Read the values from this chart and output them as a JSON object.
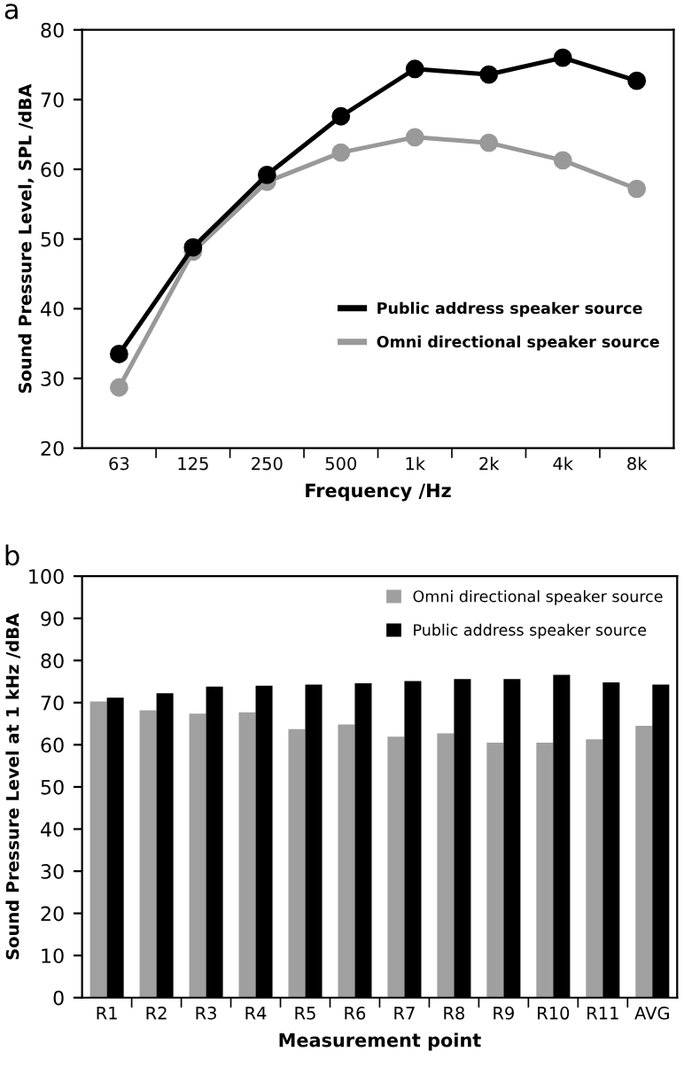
{
  "chart_data": [
    {
      "type": "line",
      "title": "a",
      "xlabel": "Frequency /Hz",
      "ylabel": "Sound Pressure Level, SPL /dBA",
      "categories": [
        "63",
        "125",
        "250",
        "500",
        "1k",
        "2k",
        "4k",
        "8k"
      ],
      "series": [
        {
          "name": "Public address speaker source",
          "color": "#000000",
          "values": [
            33.5,
            48.8,
            59.2,
            67.6,
            74.4,
            73.6,
            76.0,
            72.7
          ]
        },
        {
          "name": "Omni directional speaker source",
          "color": "#999999",
          "values": [
            28.7,
            48.2,
            58.2,
            62.4,
            64.6,
            63.8,
            61.3,
            57.2
          ]
        }
      ],
      "ylim": [
        20,
        80
      ],
      "yticks": [
        20,
        30,
        40,
        50,
        60,
        70,
        80
      ],
      "marker": "circle",
      "line_style": "solid",
      "grid": false,
      "legend": "bottom right"
    },
    {
      "type": "bar",
      "title": "b",
      "xlabel": "Measurement point",
      "ylabel": "Sound Pressure Level at 1 kHz /dBA",
      "categories": [
        "R1",
        "R2",
        "R3",
        "R4",
        "R5",
        "R6",
        "R7",
        "R8",
        "R9",
        "R10",
        "R11",
        "AVG"
      ],
      "series": [
        {
          "name": "Omni directional speaker source",
          "color": "#a0a0a0",
          "values": [
            70.3,
            68.2,
            67.4,
            67.7,
            63.7,
            64.8,
            61.9,
            62.7,
            60.5,
            60.5,
            61.3,
            64.5
          ]
        },
        {
          "name": "Public address speaker source",
          "color": "#000000",
          "values": [
            71.2,
            72.2,
            73.8,
            74.0,
            74.3,
            74.6,
            75.1,
            75.6,
            75.6,
            76.6,
            74.8,
            74.3
          ]
        }
      ],
      "ylim": [
        0,
        100
      ],
      "yticks": [
        0,
        10,
        20,
        30,
        40,
        50,
        60,
        70,
        80,
        90,
        100
      ],
      "grid": false,
      "legend": "top right"
    }
  ]
}
